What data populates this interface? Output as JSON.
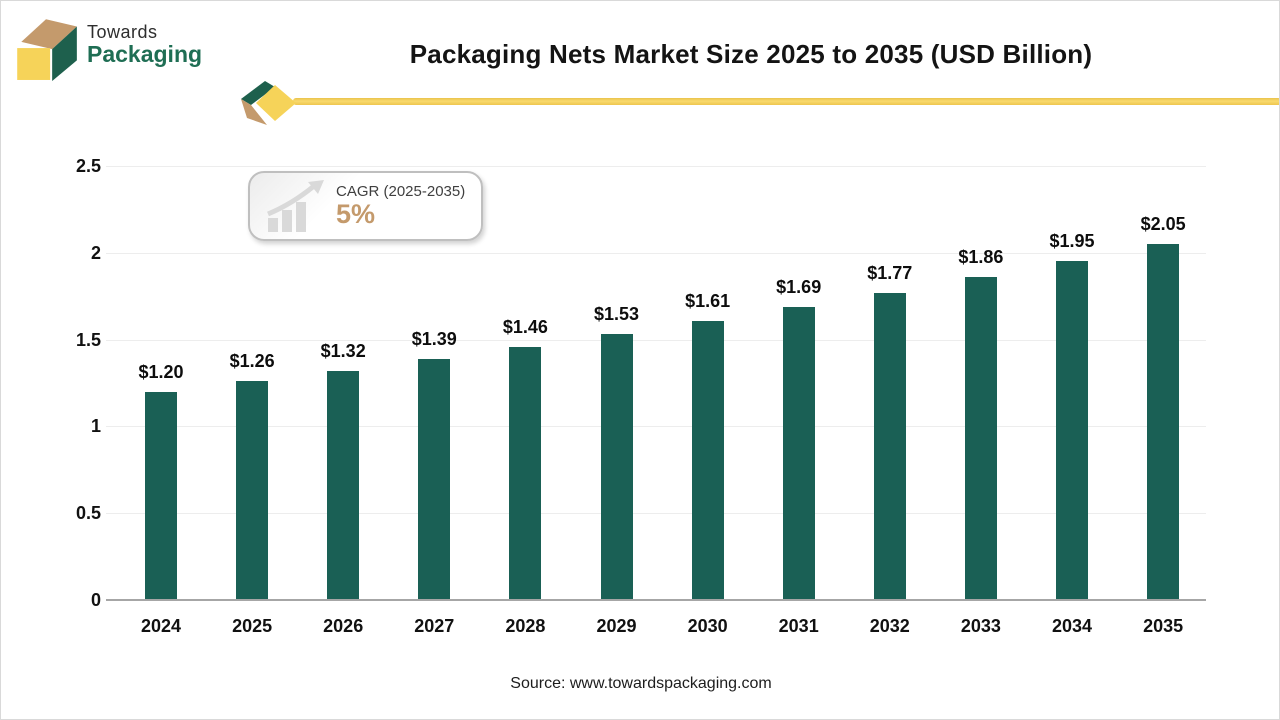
{
  "logo": {
    "line1": "Towards",
    "line2": "Packaging"
  },
  "header": {
    "title": "Packaging Nets Market Size 2025 to 2035 (USD Billion)"
  },
  "cagr_badge": {
    "label": "CAGR (2025-2035)",
    "value": "5%"
  },
  "chart_data": {
    "type": "bar",
    "title": "Packaging Nets Market Size 2025 to 2035 (USD Billion)",
    "categories": [
      "2024",
      "2025",
      "2026",
      "2027",
      "2028",
      "2029",
      "2030",
      "2031",
      "2032",
      "2033",
      "2034",
      "2035"
    ],
    "values": [
      1.2,
      1.26,
      1.32,
      1.39,
      1.46,
      1.53,
      1.61,
      1.69,
      1.77,
      1.86,
      1.95,
      2.05
    ],
    "value_labels": [
      "$1.20",
      "$1.26",
      "$1.32",
      "$1.39",
      "$1.46",
      "$1.53",
      "$1.61",
      "$1.69",
      "$1.77",
      "$1.86",
      "$1.95",
      "$2.05"
    ],
    "xlabel": "",
    "ylabel": "",
    "ylim": [
      0,
      2.5
    ],
    "yticks": [
      0,
      0.5,
      1,
      1.5,
      2,
      2.5
    ],
    "ytick_labels": [
      "0",
      "0.5",
      "1",
      "1.5",
      "2",
      "2.5"
    ],
    "bar_color": "#1a6055",
    "grid": true,
    "legend": false
  },
  "footer": {
    "source": "Source: www.towardspackaging.com"
  },
  "colors": {
    "bar": "#1a6055",
    "accent_yellow": "#f6d359",
    "accent_tan": "#c49a6c",
    "logo_green": "#1f6e54",
    "gridline": "#ededed",
    "axis": "#a6a6a6"
  }
}
